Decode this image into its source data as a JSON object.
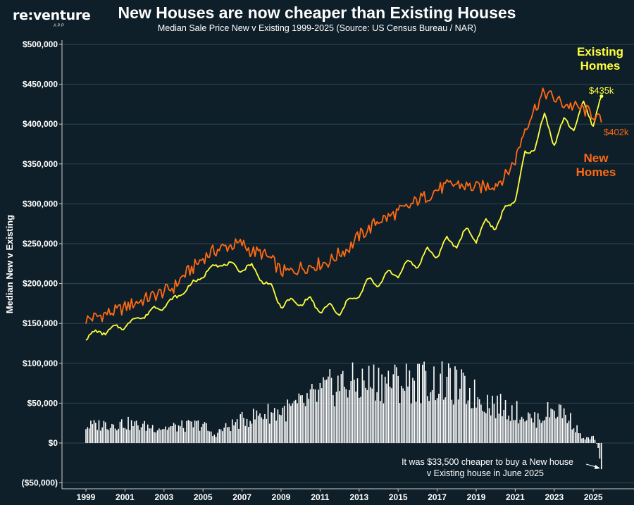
{
  "header": {
    "brand": "re:venture",
    "brand_sub": "APP",
    "title": "New Houses are now cheaper than Existing Houses",
    "subtitle": "Median Sale Price New v Existing 1999-2025 (Source: US Census Bureau / NAR)"
  },
  "chart_data": {
    "type": "line",
    "ylabel": "Median New v Existing",
    "ylim": [
      -50000,
      500000
    ],
    "xlim": [
      1999,
      2026
    ],
    "grid": true,
    "yticks": [
      {
        "v": 500000,
        "label": "$500,000"
      },
      {
        "v": 450000,
        "label": "$450,000"
      },
      {
        "v": 400000,
        "label": "$400,000"
      },
      {
        "v": 350000,
        "label": "$350,000"
      },
      {
        "v": 300000,
        "label": "$300,000"
      },
      {
        "v": 250000,
        "label": "$250,000"
      },
      {
        "v": 200000,
        "label": "$200,000"
      },
      {
        "v": 150000,
        "label": "$150,000"
      },
      {
        "v": 100000,
        "label": "$100,000"
      },
      {
        "v": 50000,
        "label": "$50,000"
      },
      {
        "v": 0,
        "label": "$0"
      },
      {
        "v": -50000,
        "label": "($50,000)"
      }
    ],
    "xticks": [
      {
        "v": 1999,
        "label": "1999"
      },
      {
        "v": 2001,
        "label": "2001"
      },
      {
        "v": 2003,
        "label": "2003"
      },
      {
        "v": 2005,
        "label": "2005"
      },
      {
        "v": 2007,
        "label": "2007"
      },
      {
        "v": 2009,
        "label": "2009"
      },
      {
        "v": 2011,
        "label": "2011"
      },
      {
        "v": 2013,
        "label": "2013"
      },
      {
        "v": 2015,
        "label": "2015"
      },
      {
        "v": 2017,
        "label": "2017"
      },
      {
        "v": 2019,
        "label": "2019"
      },
      {
        "v": 2021,
        "label": "2021"
      },
      {
        "v": 2023,
        "label": "2023"
      },
      {
        "v": 2025,
        "label": "2025"
      }
    ],
    "series": [
      {
        "name": "New Homes",
        "color": "#ff6a13",
        "anchors": [
          [
            1999.0,
            155000
          ],
          [
            1999.5,
            158000
          ],
          [
            2000.0,
            162000
          ],
          [
            2000.5,
            165000
          ],
          [
            2001.0,
            170000
          ],
          [
            2001.5,
            176000
          ],
          [
            2002.0,
            180000
          ],
          [
            2002.5,
            185000
          ],
          [
            2003.0,
            190000
          ],
          [
            2003.5,
            195000
          ],
          [
            2004.0,
            210000
          ],
          [
            2004.5,
            220000
          ],
          [
            2005.0,
            232000
          ],
          [
            2005.5,
            240000
          ],
          [
            2006.0,
            245000
          ],
          [
            2006.5,
            248000
          ],
          [
            2007.0,
            250000
          ],
          [
            2007.5,
            240000
          ],
          [
            2008.0,
            238000
          ],
          [
            2008.5,
            230000
          ],
          [
            2009.0,
            215000
          ],
          [
            2009.5,
            215000
          ],
          [
            2010.0,
            220000
          ],
          [
            2010.5,
            222000
          ],
          [
            2011.0,
            225000
          ],
          [
            2011.5,
            228000
          ],
          [
            2012.0,
            238000
          ],
          [
            2012.5,
            245000
          ],
          [
            2013.0,
            260000
          ],
          [
            2013.5,
            268000
          ],
          [
            2014.0,
            280000
          ],
          [
            2014.5,
            283000
          ],
          [
            2015.0,
            290000
          ],
          [
            2015.5,
            295000
          ],
          [
            2016.0,
            305000
          ],
          [
            2016.5,
            310000
          ],
          [
            2017.0,
            318000
          ],
          [
            2017.5,
            322000
          ],
          [
            2018.0,
            325000
          ],
          [
            2018.5,
            322000
          ],
          [
            2019.0,
            320000
          ],
          [
            2019.5,
            322000
          ],
          [
            2020.0,
            325000
          ],
          [
            2020.5,
            335000
          ],
          [
            2021.0,
            355000
          ],
          [
            2021.5,
            395000
          ],
          [
            2022.0,
            420000
          ],
          [
            2022.5,
            440000
          ],
          [
            2023.0,
            432000
          ],
          [
            2023.5,
            425000
          ],
          [
            2024.0,
            422000
          ],
          [
            2024.5,
            418000
          ],
          [
            2025.0,
            412000
          ],
          [
            2025.42,
            402000
          ]
        ]
      },
      {
        "name": "Existing Homes",
        "color": "#ffff3c",
        "anchors": [
          [
            1999.0,
            133000
          ],
          [
            1999.5,
            138000
          ],
          [
            2000.0,
            140000
          ],
          [
            2000.5,
            144000
          ],
          [
            2001.0,
            147000
          ],
          [
            2001.5,
            155000
          ],
          [
            2002.0,
            160000
          ],
          [
            2002.5,
            168000
          ],
          [
            2003.0,
            172000
          ],
          [
            2003.5,
            180000
          ],
          [
            2004.0,
            190000
          ],
          [
            2004.5,
            200000
          ],
          [
            2005.0,
            210000
          ],
          [
            2005.5,
            222000
          ],
          [
            2006.0,
            225000
          ],
          [
            2006.5,
            222000
          ],
          [
            2007.0,
            218000
          ],
          [
            2007.5,
            222000
          ],
          [
            2008.0,
            205000
          ],
          [
            2008.5,
            195000
          ],
          [
            2009.0,
            172000
          ],
          [
            2009.5,
            178000
          ],
          [
            2010.0,
            175000
          ],
          [
            2010.5,
            180000
          ],
          [
            2011.0,
            165000
          ],
          [
            2011.5,
            172000
          ],
          [
            2012.0,
            162000
          ],
          [
            2012.5,
            180000
          ],
          [
            2013.0,
            185000
          ],
          [
            2013.5,
            205000
          ],
          [
            2014.0,
            198000
          ],
          [
            2014.5,
            215000
          ],
          [
            2015.0,
            210000
          ],
          [
            2015.5,
            228000
          ],
          [
            2016.0,
            222000
          ],
          [
            2016.5,
            242000
          ],
          [
            2017.0,
            235000
          ],
          [
            2017.5,
            255000
          ],
          [
            2018.0,
            248000
          ],
          [
            2018.5,
            268000
          ],
          [
            2019.0,
            255000
          ],
          [
            2019.5,
            278000
          ],
          [
            2020.0,
            270000
          ],
          [
            2020.5,
            295000
          ],
          [
            2021.0,
            305000
          ],
          [
            2021.5,
            362000
          ],
          [
            2022.0,
            370000
          ],
          [
            2022.5,
            412000
          ],
          [
            2023.0,
            375000
          ],
          [
            2023.5,
            405000
          ],
          [
            2024.0,
            395000
          ],
          [
            2024.5,
            425000
          ],
          [
            2025.0,
            400000
          ],
          [
            2025.42,
            435000
          ]
        ]
      },
      {
        "name": "Difference",
        "color": "#ffffff",
        "type": "bar",
        "anchors": [
          [
            1999.0,
            22000
          ],
          [
            2000.0,
            25000
          ],
          [
            2001.0,
            26000
          ],
          [
            2002.0,
            22000
          ],
          [
            2003.0,
            20000
          ],
          [
            2004.0,
            22000
          ],
          [
            2005.0,
            25000
          ],
          [
            2005.5,
            10000
          ],
          [
            2006.0,
            18000
          ],
          [
            2007.0,
            30000
          ],
          [
            2008.0,
            38000
          ],
          [
            2009.0,
            42000
          ],
          [
            2009.5,
            45000
          ],
          [
            2010.0,
            50000
          ],
          [
            2011.0,
            65000
          ],
          [
            2012.0,
            78000
          ],
          [
            2013.0,
            78000
          ],
          [
            2014.0,
            82000
          ],
          [
            2015.0,
            80000
          ],
          [
            2016.0,
            82000
          ],
          [
            2017.0,
            80000
          ],
          [
            2018.0,
            75000
          ],
          [
            2019.0,
            62000
          ],
          [
            2020.0,
            50000
          ],
          [
            2021.0,
            42000
          ],
          [
            2022.0,
            30000
          ],
          [
            2022.5,
            38000
          ],
          [
            2023.0,
            45000
          ],
          [
            2023.5,
            40000
          ],
          [
            2024.0,
            25000
          ],
          [
            2024.5,
            5000
          ],
          [
            2025.0,
            8000
          ],
          [
            2025.3,
            -8000
          ],
          [
            2025.42,
            -33500
          ]
        ]
      }
    ],
    "labels": {
      "existing_line1": "Existing",
      "existing_line2": "Homes",
      "new_line1": "New",
      "new_line2": "Homes",
      "existing_end": "$435k",
      "new_end": "$402k"
    },
    "annotation": {
      "line1": "It was $33,500 cheaper to buy a New house",
      "line2": "v Existing house in June 2025"
    }
  }
}
